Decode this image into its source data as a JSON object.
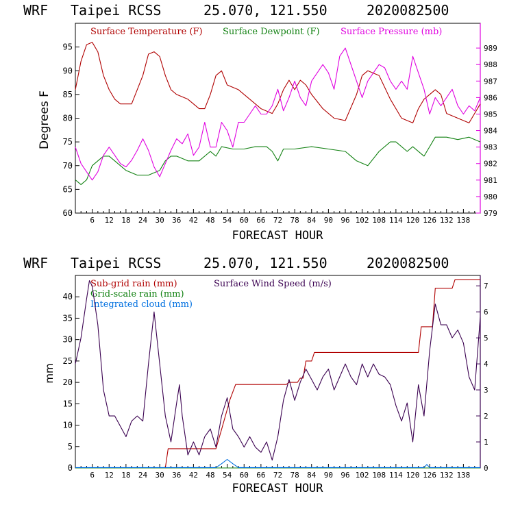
{
  "top": {
    "title_model": "WRF",
    "title_station": "Taipei RCSS",
    "title_coords": "25.070, 121.550",
    "title_date": "2020082500",
    "ylabel_left": "Degrees F",
    "xlabel": "FORECAST HOUR",
    "legend": [
      "Surface Temperature (F)",
      "Surface Dewpoint (F)",
      "Surface Pressure (mb)"
    ]
  },
  "bottom": {
    "title_model": "WRF",
    "title_station": "Taipei RCSS",
    "title_coords": "25.070, 121.550",
    "title_date": "2020082500",
    "ylabel_left": "mm",
    "xlabel": "FORECAST HOUR",
    "legend": [
      "Sub-grid rain (mm)",
      "Grid-scale rain (mm)",
      "Integrated cloud (mm)",
      "Surface Wind Speed (m/s)"
    ]
  },
  "colors": {
    "temperature": "#b00000",
    "dewpoint": "#108010",
    "pressure": "#e000e0",
    "subgrid": "#b00000",
    "gridscale": "#108010",
    "cloud": "#0070e0",
    "wind": "#3a0050",
    "axis": "#000000"
  },
  "chart_data": [
    {
      "type": "line",
      "title": "WRF Taipei RCSS 25.070, 121.550 2020082500",
      "xlabel": "FORECAST HOUR",
      "ylabel": "Degrees F",
      "y2label": "Surface Pressure (mb)",
      "xlim": [
        0,
        144
      ],
      "ylim": [
        60,
        100
      ],
      "y2lim": [
        979,
        990.5
      ],
      "xticks": [
        6,
        12,
        18,
        24,
        30,
        36,
        42,
        48,
        54,
        60,
        66,
        72,
        78,
        84,
        90,
        96,
        102,
        108,
        114,
        120,
        126,
        132,
        138
      ],
      "yticks": [
        60,
        65,
        70,
        75,
        80,
        85,
        90,
        95
      ],
      "y2ticks": [
        979,
        980,
        981,
        982,
        983,
        984,
        985,
        986,
        987,
        988,
        989
      ],
      "series": [
        {
          "name": "Surface Temperature (F)",
          "axis": "left",
          "x": [
            0,
            2,
            4,
            6,
            8,
            10,
            12,
            14,
            16,
            18,
            20,
            22,
            24,
            26,
            28,
            30,
            32,
            34,
            36,
            40,
            44,
            46,
            48,
            50,
            52,
            54,
            58,
            62,
            66,
            70,
            72,
            74,
            76,
            78,
            80,
            82,
            84,
            88,
            92,
            96,
            100,
            102,
            104,
            108,
            112,
            116,
            120,
            122,
            124,
            126,
            128,
            130,
            132,
            136,
            140,
            144
          ],
          "values": [
            86,
            92,
            95.5,
            96,
            94,
            89,
            86,
            84,
            83,
            83,
            83,
            86,
            89,
            93.5,
            94,
            93,
            89,
            86,
            85,
            84,
            82,
            82,
            85,
            89,
            90,
            87,
            86,
            84,
            82,
            81,
            83,
            86,
            88,
            86,
            88,
            87,
            85,
            82,
            80,
            79.5,
            85,
            89,
            90,
            89,
            84,
            80,
            79,
            82,
            84,
            85,
            86,
            85,
            81,
            80,
            79,
            83
          ]
        },
        {
          "name": "Surface Dewpoint (F)",
          "axis": "left",
          "x": [
            0,
            2,
            4,
            6,
            8,
            10,
            12,
            14,
            16,
            18,
            22,
            26,
            30,
            32,
            34,
            36,
            40,
            44,
            48,
            50,
            52,
            56,
            60,
            64,
            68,
            70,
            72,
            74,
            78,
            84,
            90,
            96,
            100,
            104,
            108,
            112,
            114,
            118,
            120,
            124,
            126,
            128,
            130,
            132,
            136,
            140,
            144
          ],
          "values": [
            67,
            66,
            67,
            70,
            71,
            72,
            72,
            71,
            70,
            69,
            68,
            68,
            69,
            71,
            72,
            72,
            71,
            71,
            73,
            72,
            74,
            73.5,
            73.5,
            74,
            74,
            73,
            71,
            73.5,
            73.5,
            74,
            73.5,
            73,
            71,
            70,
            73,
            75,
            75,
            73,
            74,
            72,
            74,
            76,
            76,
            76,
            75.5,
            76,
            75
          ]
        },
        {
          "name": "Surface Pressure (mb)",
          "axis": "right",
          "x": [
            0,
            2,
            4,
            6,
            8,
            10,
            12,
            14,
            16,
            18,
            20,
            22,
            24,
            26,
            28,
            30,
            32,
            34,
            36,
            38,
            40,
            42,
            44,
            46,
            48,
            50,
            52,
            54,
            56,
            58,
            60,
            62,
            64,
            66,
            68,
            70,
            72,
            74,
            76,
            78,
            80,
            82,
            84,
            86,
            88,
            90,
            92,
            94,
            96,
            98,
            100,
            102,
            104,
            106,
            108,
            110,
            112,
            114,
            116,
            118,
            120,
            122,
            124,
            126,
            128,
            130,
            132,
            134,
            136,
            138,
            140,
            142,
            144
          ],
          "values": [
            983,
            982,
            981.5,
            981,
            981.5,
            982.5,
            983,
            982.5,
            982,
            981.8,
            982.2,
            982.8,
            983.5,
            982.8,
            981.8,
            981.2,
            982,
            982.8,
            983.5,
            983.2,
            983.8,
            982.5,
            983,
            984.5,
            983,
            983,
            984.5,
            984,
            983,
            984.5,
            984.5,
            985,
            985.5,
            985,
            985,
            985.5,
            986.5,
            985.2,
            986,
            987,
            986,
            985.5,
            987,
            987.5,
            988,
            987.5,
            986.5,
            988.5,
            989,
            988,
            987,
            986,
            987,
            987.5,
            988,
            987.8,
            987,
            986.5,
            987,
            986.5,
            988.5,
            987.5,
            986.5,
            985,
            986,
            985.5,
            986,
            986.5,
            985.5,
            985,
            985.5,
            985.2,
            986
          ]
        }
      ]
    },
    {
      "type": "line",
      "title": "WRF Taipei RCSS 25.070, 121.550 2020082500",
      "xlabel": "FORECAST HOUR",
      "ylabel": "mm",
      "y2label": "Surface Wind Speed (m/s)",
      "xlim": [
        0,
        144
      ],
      "ylim": [
        0,
        45
      ],
      "y2lim": [
        0,
        7.4
      ],
      "xticks": [
        6,
        12,
        18,
        24,
        30,
        36,
        42,
        48,
        54,
        60,
        66,
        72,
        78,
        84,
        90,
        96,
        102,
        108,
        114,
        120,
        126,
        132,
        138
      ],
      "yticks": [
        0,
        5,
        10,
        15,
        20,
        25,
        30,
        35,
        40
      ],
      "y2ticks": [
        0,
        1,
        2,
        3,
        4,
        5,
        6,
        7
      ],
      "series": [
        {
          "name": "Sub-grid rain (mm)",
          "axis": "left",
          "x": [
            0,
            32,
            33,
            50,
            52,
            55,
            57,
            75,
            76,
            79,
            80,
            81,
            82,
            84,
            85,
            122,
            123,
            127,
            128,
            134,
            135,
            144
          ],
          "values": [
            0,
            0,
            4.5,
            4.5,
            9,
            16,
            19.5,
            19.5,
            20,
            20,
            21,
            21,
            25,
            25,
            27,
            27,
            33,
            33,
            42,
            42,
            44,
            44
          ]
        },
        {
          "name": "Grid-scale rain (mm)",
          "axis": "left",
          "x": [
            0,
            144
          ],
          "values": [
            0,
            0
          ]
        },
        {
          "name": "Integrated cloud (mm)",
          "axis": "left",
          "x": [
            0,
            50,
            52,
            54,
            56,
            58,
            124,
            125,
            126,
            144
          ],
          "values": [
            0.1,
            0.1,
            1,
            2,
            1,
            0.1,
            0.1,
            0.8,
            0.1,
            0.1
          ]
        },
        {
          "name": "Surface Wind Speed (m/s)",
          "axis": "right",
          "x": [
            0,
            2,
            4,
            5,
            6,
            8,
            10,
            12,
            14,
            16,
            18,
            20,
            22,
            24,
            26,
            28,
            30,
            32,
            34,
            36,
            37,
            38,
            40,
            42,
            44,
            46,
            48,
            50,
            52,
            54,
            56,
            58,
            60,
            62,
            64,
            66,
            68,
            70,
            72,
            74,
            76,
            78,
            80,
            82,
            84,
            86,
            88,
            90,
            92,
            94,
            96,
            98,
            100,
            102,
            104,
            106,
            108,
            110,
            112,
            114,
            116,
            118,
            120,
            122,
            124,
            126,
            128,
            130,
            132,
            134,
            136,
            138,
            140,
            142,
            144
          ],
          "values": [
            4,
            5,
            6.5,
            7.2,
            7,
            5.5,
            3,
            2,
            2,
            1.6,
            1.2,
            1.8,
            2,
            1.8,
            4,
            6,
            4,
            2,
            1,
            2.5,
            3.2,
            2,
            0.5,
            1,
            0.5,
            1.2,
            1.5,
            0.8,
            2,
            2.7,
            1.5,
            1.2,
            0.8,
            1.2,
            0.8,
            0.6,
            1,
            0.3,
            1.2,
            2.6,
            3.4,
            2.6,
            3.3,
            3.8,
            3.4,
            3,
            3.5,
            3.8,
            3,
            3.5,
            4,
            3.5,
            3.2,
            4,
            3.5,
            4,
            3.6,
            3.5,
            3.2,
            2.4,
            1.8,
            2.5,
            1,
            3.2,
            2,
            4.5,
            6.3,
            5.5,
            5.5,
            5,
            5.3,
            4.8,
            3.5,
            3,
            5.8
          ]
        }
      ]
    }
  ]
}
